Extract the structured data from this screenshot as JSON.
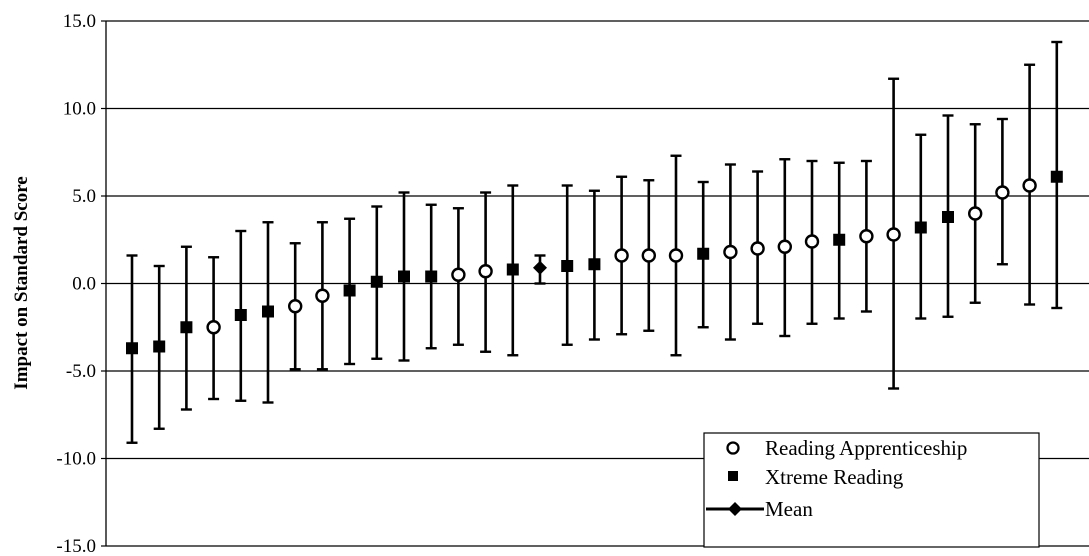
{
  "chart_data": {
    "type": "scatter",
    "title": "",
    "xlabel": "",
    "ylabel": "Impact on Standard Score",
    "ylim": [
      -15,
      15
    ],
    "yticks": [
      "15.0",
      "10.0",
      "5.0",
      "0.0",
      "-5.0",
      "-10.0",
      "-15.0"
    ],
    "grid": "horizontal",
    "legend_position": "bottom-right",
    "legend": [
      {
        "name": "Reading Apprenticeship",
        "marker": "open-circle"
      },
      {
        "name": "Xtreme Reading",
        "marker": "filled-square"
      },
      {
        "name": "Mean",
        "marker": "diamond-line"
      }
    ],
    "series": [
      {
        "name": "Reading Apprenticeship",
        "marker": "open-circle",
        "points": [
          {
            "x": 4,
            "y": -2.5,
            "low": -6.6,
            "high": 1.5
          },
          {
            "x": 7,
            "y": -1.3,
            "low": -4.9,
            "high": 2.3
          },
          {
            "x": 8,
            "y": -0.7,
            "low": -4.9,
            "high": 3.5
          },
          {
            "x": 13,
            "y": 0.5,
            "low": -3.5,
            "high": 4.3
          },
          {
            "x": 14,
            "y": 0.7,
            "low": -3.9,
            "high": 5.2
          },
          {
            "x": 19,
            "y": 1.6,
            "low": -2.9,
            "high": 6.1
          },
          {
            "x": 20,
            "y": 1.6,
            "low": -2.7,
            "high": 5.9
          },
          {
            "x": 21,
            "y": 1.6,
            "low": -4.1,
            "high": 7.3
          },
          {
            "x": 23,
            "y": 1.8,
            "low": -3.2,
            "high": 6.8
          },
          {
            "x": 24,
            "y": 2.0,
            "low": -2.3,
            "high": 6.4
          },
          {
            "x": 25,
            "y": 2.1,
            "low": -3.0,
            "high": 7.1
          },
          {
            "x": 26,
            "y": 2.4,
            "low": -2.3,
            "high": 7.0
          },
          {
            "x": 28,
            "y": 2.7,
            "low": -1.6,
            "high": 7.0
          },
          {
            "x": 29,
            "y": 2.8,
            "low": -6.0,
            "high": 11.7
          },
          {
            "x": 32,
            "y": 4.0,
            "low": -1.1,
            "high": 9.1
          },
          {
            "x": 33,
            "y": 5.2,
            "low": 1.1,
            "high": 9.4
          },
          {
            "x": 34,
            "y": 5.6,
            "low": -1.2,
            "high": 12.5
          }
        ]
      },
      {
        "name": "Xtreme Reading",
        "marker": "filled-square",
        "points": [
          {
            "x": 1,
            "y": -3.7,
            "low": -9.1,
            "high": 1.6
          },
          {
            "x": 2,
            "y": -3.6,
            "low": -8.3,
            "high": 1.0
          },
          {
            "x": 3,
            "y": -2.5,
            "low": -7.2,
            "high": 2.1
          },
          {
            "x": 5,
            "y": -1.8,
            "low": -6.7,
            "high": 3.0
          },
          {
            "x": 6,
            "y": -1.6,
            "low": -6.8,
            "high": 3.5
          },
          {
            "x": 9,
            "y": -0.4,
            "low": -4.6,
            "high": 3.7
          },
          {
            "x": 10,
            "y": 0.1,
            "low": -4.3,
            "high": 4.4
          },
          {
            "x": 11,
            "y": 0.4,
            "low": -4.4,
            "high": 5.2
          },
          {
            "x": 12,
            "y": 0.4,
            "low": -3.7,
            "high": 4.5
          },
          {
            "x": 15,
            "y": 0.8,
            "low": -4.1,
            "high": 5.6
          },
          {
            "x": 17,
            "y": 1.0,
            "low": -3.5,
            "high": 5.6
          },
          {
            "x": 18,
            "y": 1.1,
            "low": -3.2,
            "high": 5.3
          },
          {
            "x": 22,
            "y": 1.7,
            "low": -2.5,
            "high": 5.8
          },
          {
            "x": 27,
            "y": 2.5,
            "low": -2.0,
            "high": 6.9
          },
          {
            "x": 30,
            "y": 3.2,
            "low": -2.0,
            "high": 8.5
          },
          {
            "x": 31,
            "y": 3.8,
            "low": -1.9,
            "high": 9.6
          },
          {
            "x": 35,
            "y": 6.1,
            "low": -1.4,
            "high": 13.8
          }
        ]
      },
      {
        "name": "Mean",
        "marker": "diamond",
        "points": [
          {
            "x": 16,
            "y": 0.9,
            "low": 0.0,
            "high": 1.6
          }
        ]
      }
    ]
  }
}
